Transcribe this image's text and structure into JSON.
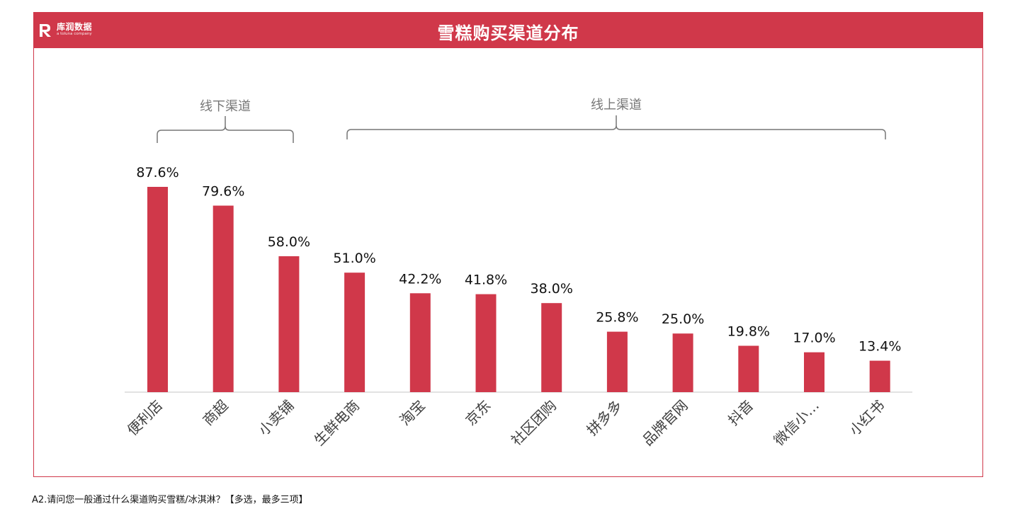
{
  "header": {
    "title": "雪糕购买渠道分布",
    "logo_name": "库润数据",
    "logo_sub": "a toluna company",
    "accent": "#d0384a"
  },
  "groups": [
    {
      "label": "线下渠道"
    },
    {
      "label": "线上渠道"
    }
  ],
  "chart_data": {
    "type": "bar",
    "categories": [
      "便利店",
      "商超",
      "小卖铺",
      "生鲜电商",
      "淘宝",
      "京东",
      "社区团购",
      "拼多多",
      "品牌官网",
      "抖音",
      "微信小…",
      "小红书"
    ],
    "values": [
      87.6,
      79.6,
      58.0,
      51.0,
      42.2,
      41.8,
      38.0,
      25.8,
      25.0,
      19.8,
      17.0,
      13.4
    ],
    "value_labels": [
      "87.6%",
      "79.6%",
      "58.0%",
      "51.0%",
      "42.2%",
      "41.8%",
      "38.0%",
      "25.8%",
      "25.0%",
      "19.8%",
      "17.0%",
      "13.4%"
    ],
    "bar_color": "#d0384a",
    "grid": false,
    "ylim": [
      0,
      100
    ]
  },
  "footnote": "A2.请问您一般通过什么渠道购买雪糕/冰淇淋？【多选，最多三项】"
}
